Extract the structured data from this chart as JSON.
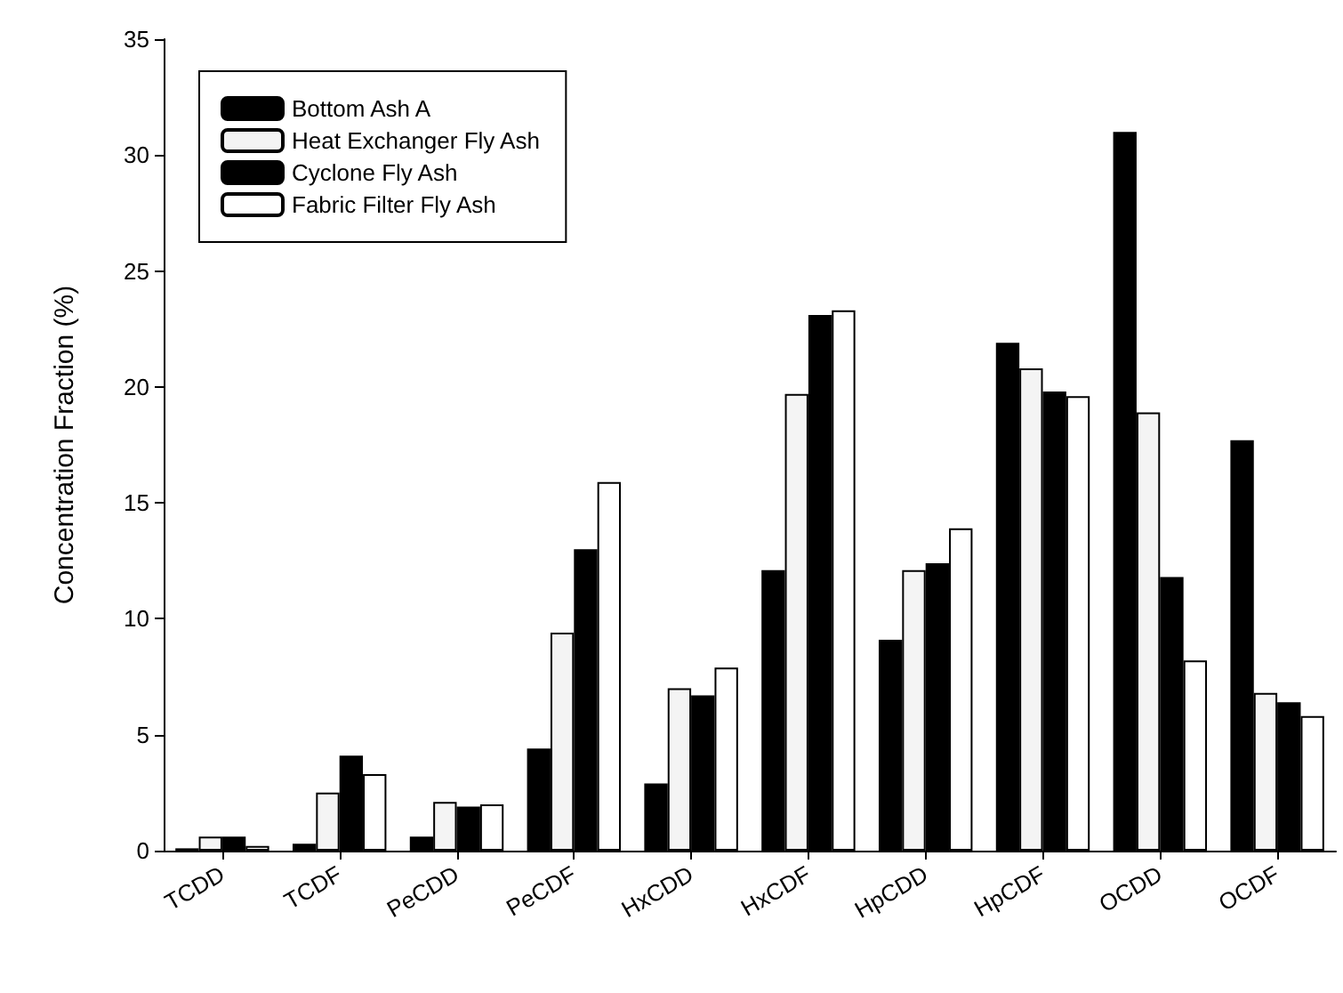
{
  "chart_data": {
    "type": "bar",
    "ylabel": "Concentration Fraction (%)",
    "categories": [
      "TCDD",
      "TCDF",
      "PeCDD",
      "PeCDF",
      "HxCDD",
      "HxCDF",
      "HpCDD",
      "HpCDF",
      "OCDD",
      "OCDF"
    ],
    "series": [
      {
        "name": "Bottom Ash A",
        "color": "#000000",
        "values": [
          0.1,
          0.3,
          0.6,
          4.4,
          2.9,
          12.1,
          9.1,
          21.9,
          31.0,
          17.7
        ]
      },
      {
        "name": "Heat Exchanger Fly Ash",
        "color": "#f4f4f4",
        "values": [
          0.6,
          2.5,
          2.1,
          9.4,
          7.0,
          19.7,
          12.1,
          20.8,
          18.9,
          6.8
        ]
      },
      {
        "name": "Cyclone Fly Ash",
        "color": "#000000",
        "values": [
          0.6,
          4.1,
          1.9,
          13.0,
          6.7,
          23.1,
          12.4,
          19.8,
          11.8,
          6.4
        ]
      },
      {
        "name": "Fabric Filter Fly Ash",
        "color": "#ffffff",
        "values": [
          0.2,
          3.3,
          2.0,
          15.9,
          7.9,
          23.3,
          13.9,
          19.6,
          8.2,
          5.8
        ]
      }
    ],
    "ylim": [
      0,
      35
    ],
    "yticks": [
      0,
      5,
      10,
      15,
      20,
      25,
      30,
      35
    ],
    "grid": false,
    "legend": "top left"
  }
}
